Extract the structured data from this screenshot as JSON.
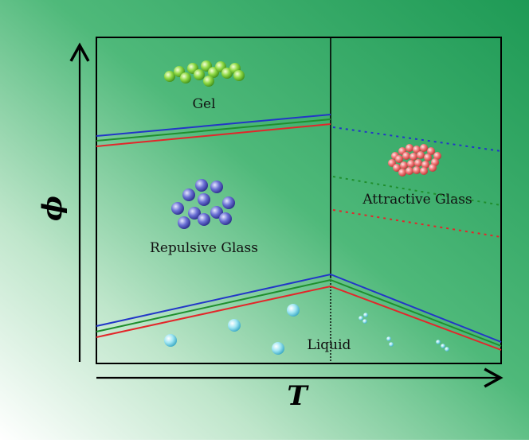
{
  "diagram": {
    "x_axis_label": "T",
    "y_axis_label": "ϕ",
    "regions": {
      "gel": "Gel",
      "repulsive_glass": "Repulsive Glass",
      "attractive_glass": "Attractive Glass",
      "liquid": "Liquid"
    },
    "colors": {
      "background_start": "#ffffff",
      "background_end": "#1e9a55",
      "boundary_blue": "#2236c8",
      "boundary_green": "#1f8f2e",
      "boundary_red": "#e3262a",
      "gel_particle": "#7fd23a",
      "repulsive_particle": "#5a5fc8",
      "attractive_particle": "#f07575",
      "liquid_particle": "#8fe2f0"
    }
  }
}
